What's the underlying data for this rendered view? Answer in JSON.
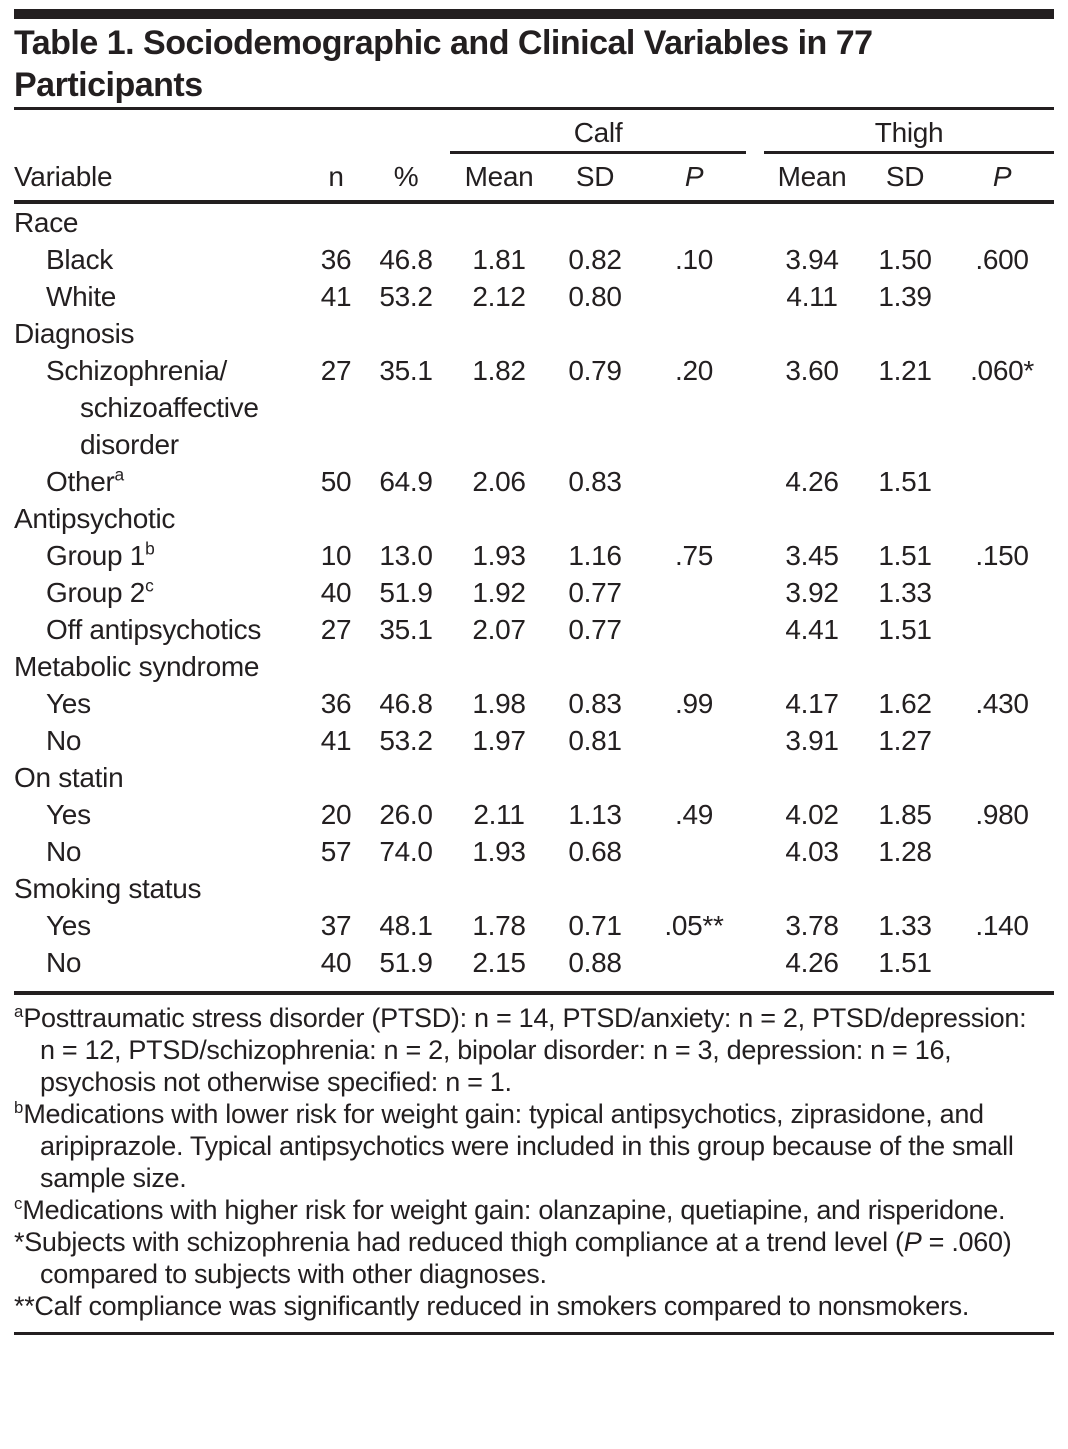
{
  "text_color": "#231f20",
  "title": "Table 1. Sociodemographic and Clinical Variables in 77 Participants",
  "table": {
    "column_groups": [
      {
        "label": "Calf"
      },
      {
        "label": "Thigh"
      }
    ],
    "columns": {
      "variable": "Variable",
      "n": "n",
      "percent": "%",
      "calf_mean": "Mean",
      "calf_sd": "SD",
      "calf_p": "P",
      "thigh_mean": "Mean",
      "thigh_sd": "SD",
      "thigh_p": "P"
    },
    "rows": [
      {
        "kind": "section",
        "label": "Race",
        "sup": "",
        "values": [
          "",
          "",
          "",
          "",
          "",
          "",
          "",
          ""
        ]
      },
      {
        "kind": "item",
        "label": "Black",
        "sup": "",
        "values": [
          "36",
          "46.8",
          "1.81",
          "0.82",
          ".10",
          "3.94",
          "1.50",
          ".600"
        ]
      },
      {
        "kind": "item",
        "label": "White",
        "sup": "",
        "values": [
          "41",
          "53.2",
          "2.12",
          "0.80",
          "",
          "4.11",
          "1.39",
          ""
        ]
      },
      {
        "kind": "section",
        "label": "Diagnosis",
        "sup": "",
        "values": [
          "",
          "",
          "",
          "",
          "",
          "",
          "",
          ""
        ]
      },
      {
        "kind": "item",
        "label": "Schizophrenia/schizoaffective disorder",
        "sup": "",
        "values": [
          "27",
          "35.1",
          "1.82",
          "0.79",
          ".20",
          "3.60",
          "1.21",
          ".060*"
        ]
      },
      {
        "kind": "item",
        "label": "Other",
        "sup": "a",
        "values": [
          "50",
          "64.9",
          "2.06",
          "0.83",
          "",
          "4.26",
          "1.51",
          ""
        ]
      },
      {
        "kind": "section",
        "label": "Antipsychotic",
        "sup": "",
        "values": [
          "",
          "",
          "",
          "",
          "",
          "",
          "",
          ""
        ]
      },
      {
        "kind": "item",
        "label": "Group 1",
        "sup": "b",
        "values": [
          "10",
          "13.0",
          "1.93",
          "1.16",
          ".75",
          "3.45",
          "1.51",
          ".150"
        ]
      },
      {
        "kind": "item",
        "label": "Group 2",
        "sup": "c",
        "values": [
          "40",
          "51.9",
          "1.92",
          "0.77",
          "",
          "3.92",
          "1.33",
          ""
        ]
      },
      {
        "kind": "item",
        "label": "Off antipsychotics",
        "sup": "",
        "values": [
          "27",
          "35.1",
          "2.07",
          "0.77",
          "",
          "4.41",
          "1.51",
          ""
        ]
      },
      {
        "kind": "section",
        "label": "Metabolic syndrome",
        "sup": "",
        "values": [
          "",
          "",
          "",
          "",
          "",
          "",
          "",
          ""
        ]
      },
      {
        "kind": "item",
        "label": "Yes",
        "sup": "",
        "values": [
          "36",
          "46.8",
          "1.98",
          "0.83",
          ".99",
          "4.17",
          "1.62",
          ".430"
        ]
      },
      {
        "kind": "item",
        "label": "No",
        "sup": "",
        "values": [
          "41",
          "53.2",
          "1.97",
          "0.81",
          "",
          "3.91",
          "1.27",
          ""
        ]
      },
      {
        "kind": "section",
        "label": "On statin",
        "sup": "",
        "values": [
          "",
          "",
          "",
          "",
          "",
          "",
          "",
          ""
        ]
      },
      {
        "kind": "item",
        "label": "Yes",
        "sup": "",
        "values": [
          "20",
          "26.0",
          "2.11",
          "1.13",
          ".49",
          "4.02",
          "1.85",
          ".980"
        ]
      },
      {
        "kind": "item",
        "label": "No",
        "sup": "",
        "values": [
          "57",
          "74.0",
          "1.93",
          "0.68",
          "",
          "4.03",
          "1.28",
          ""
        ]
      },
      {
        "kind": "section",
        "label": "Smoking status",
        "sup": "",
        "values": [
          "",
          "",
          "",
          "",
          "",
          "",
          "",
          ""
        ]
      },
      {
        "kind": "item",
        "label": "Yes",
        "sup": "",
        "values": [
          "37",
          "48.1",
          "1.78",
          "0.71",
          ".05**",
          "3.78",
          "1.33",
          ".140"
        ]
      },
      {
        "kind": "item",
        "label": "No",
        "sup": "",
        "values": [
          "40",
          "51.9",
          "2.15",
          "0.88",
          "",
          "4.26",
          "1.51",
          ""
        ]
      }
    ]
  },
  "footnotes": [
    {
      "marker": "a",
      "superscript": true,
      "pre": "Posttraumatic stress disorder (PTSD): n = 14, PTSD/anxiety: n = 2, PTSD/depression: n = 12, PTSD/schizophrenia: n = 2, bipolar disorder: n = 3, depression: n = 16, psychosis not otherwise specified: n = 1.",
      "italic": "",
      "post": ""
    },
    {
      "marker": "b",
      "superscript": true,
      "pre": "Medications with lower risk for weight gain: typical antipsychotics, ziprasidone, and aripiprazole. Typical antipsychotics were included in this group because of the small sample size.",
      "italic": "",
      "post": ""
    },
    {
      "marker": "c",
      "superscript": true,
      "pre": "Medications with higher risk for weight gain: olanzapine, quetiapine, and risperidone.",
      "italic": "",
      "post": ""
    },
    {
      "marker": "*",
      "superscript": false,
      "pre": "Subjects with schizophrenia had reduced thigh compliance at a trend level (",
      "italic": "P",
      "post": " = .060) compared to subjects with other diagnoses."
    },
    {
      "marker": "**",
      "superscript": false,
      "pre": "Calf compliance was significantly reduced in smokers compared to nonsmokers.",
      "italic": "",
      "post": ""
    }
  ]
}
